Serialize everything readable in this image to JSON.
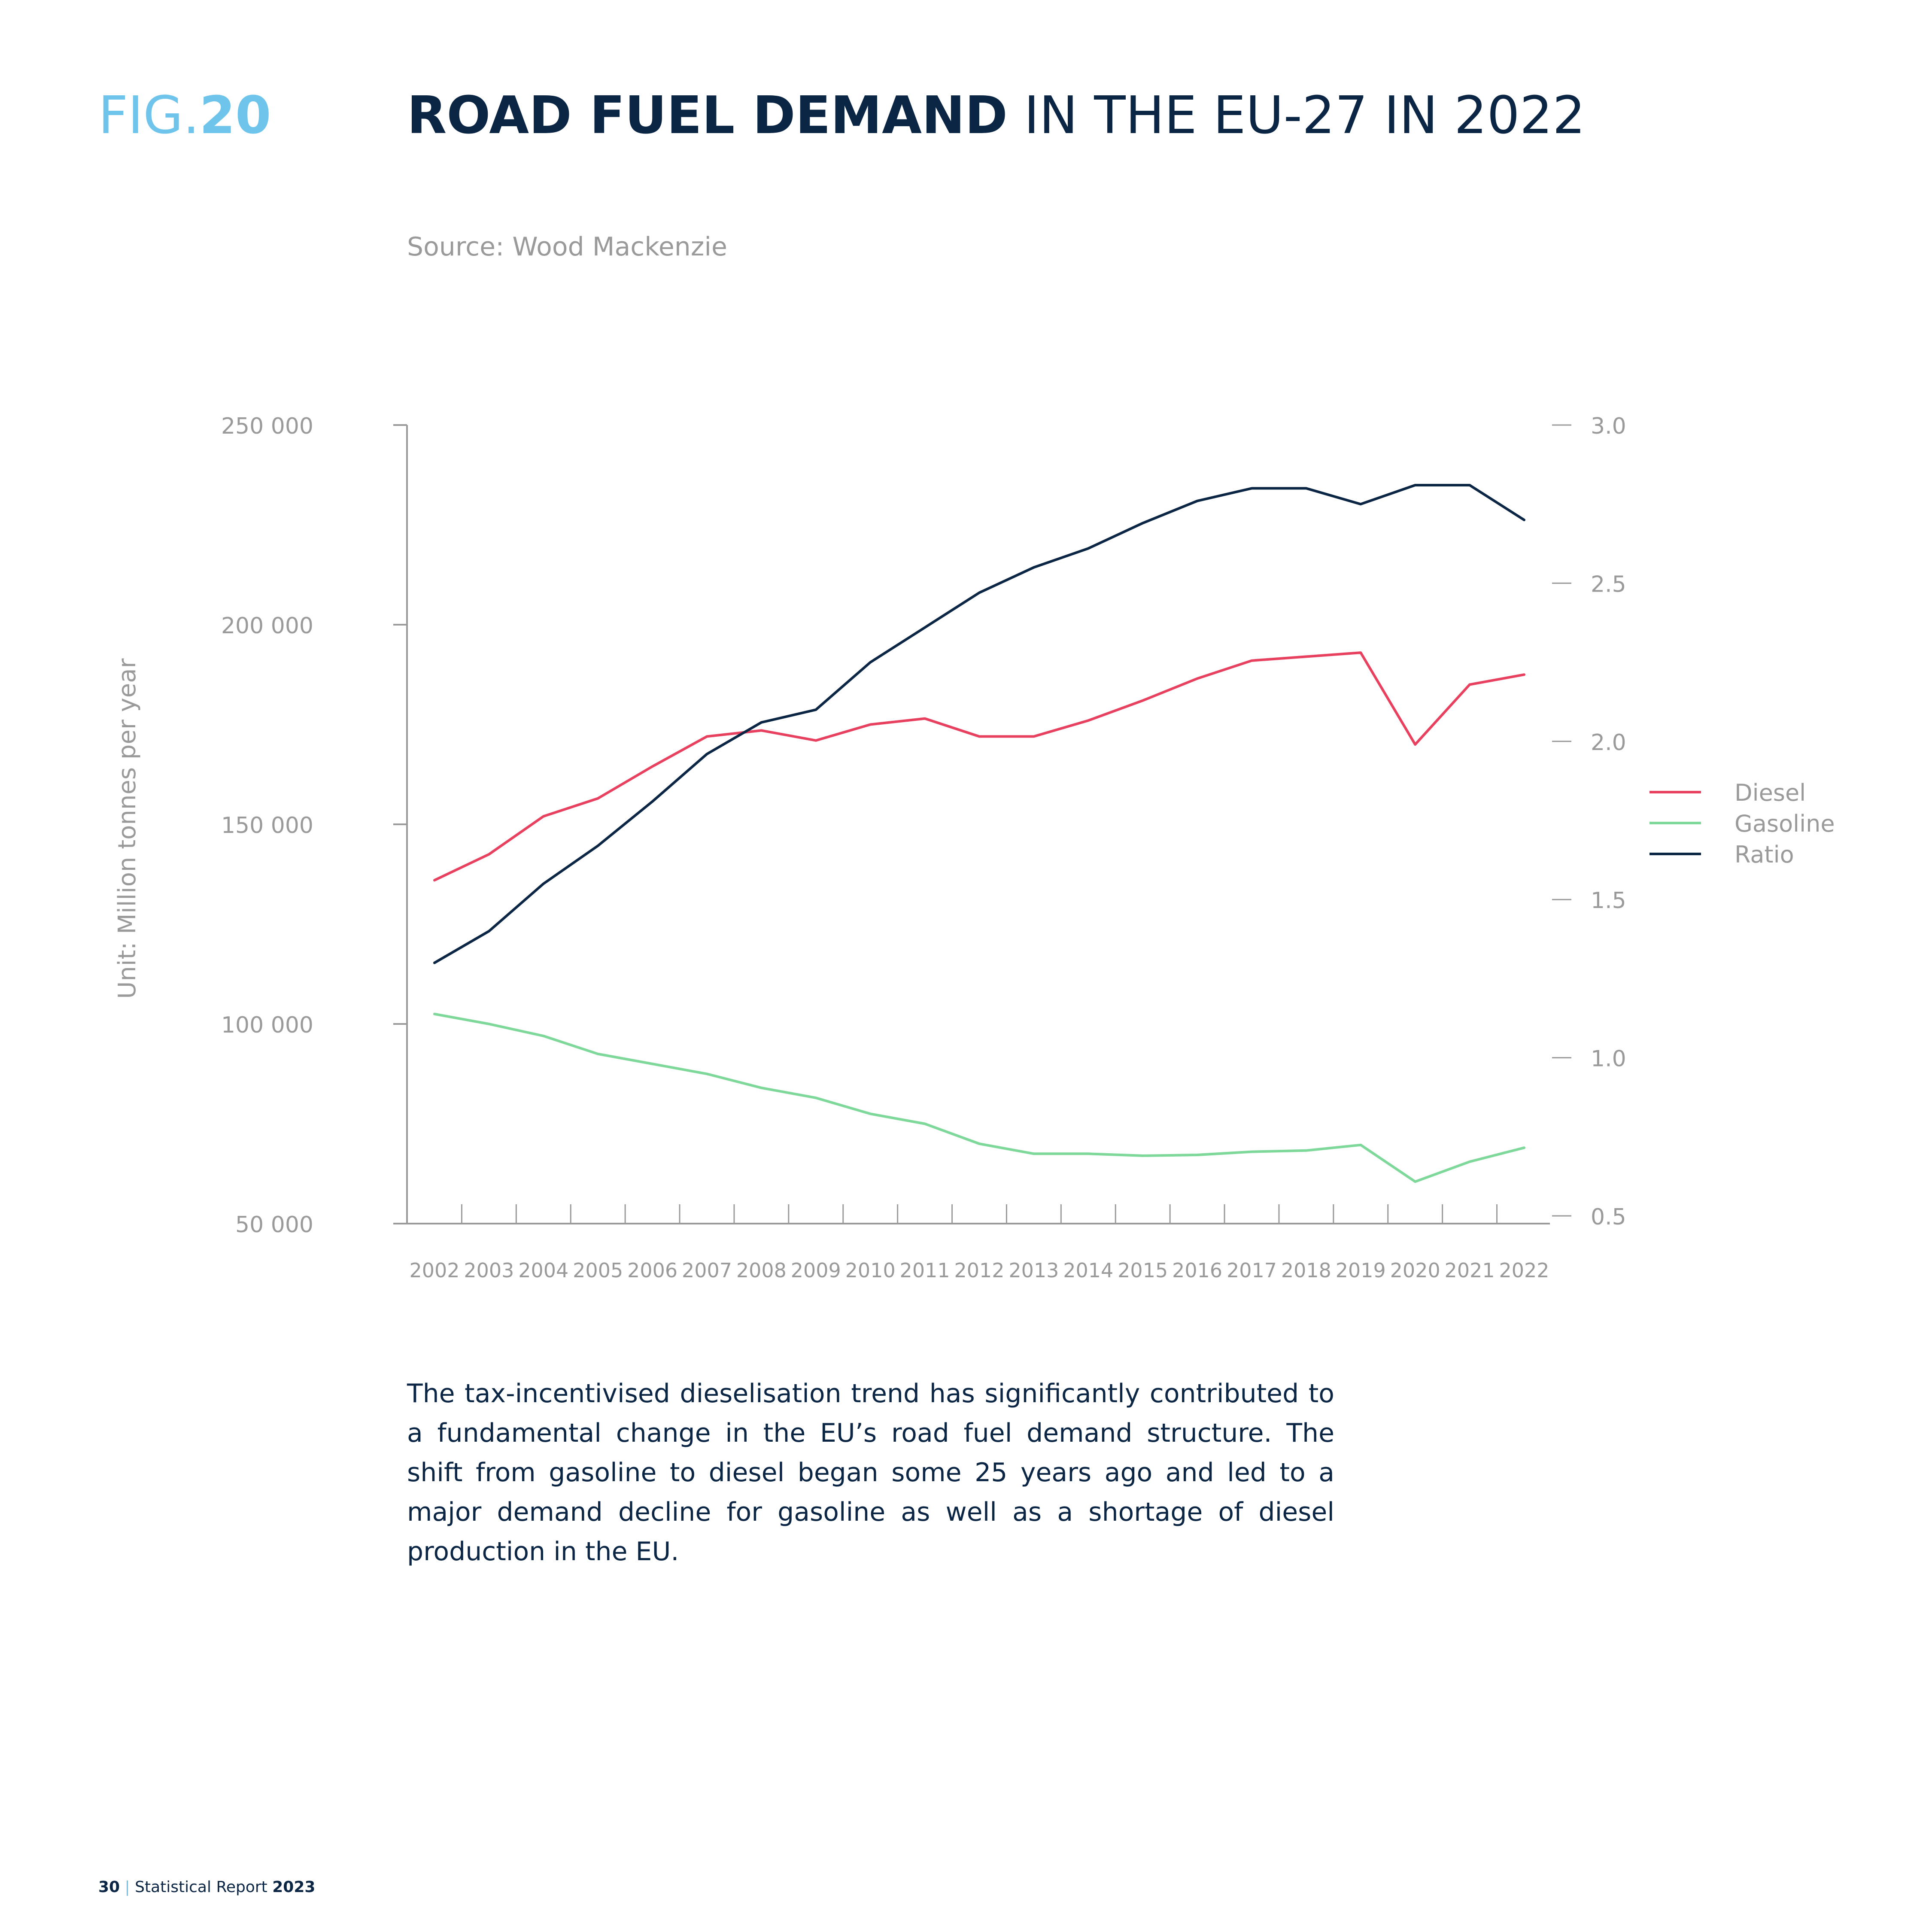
{
  "header": {
    "fig_prefix": "FIG.",
    "fig_number": "20",
    "title_bold": "ROAD FUEL DEMAND",
    "title_rest": " IN THE EU-27 IN 2022",
    "source": "Source: Wood Mackenzie"
  },
  "chart_data": {
    "type": "line",
    "ylabel": "Unit: Million tonnes per year",
    "x": [
      "2002",
      "2003",
      "2004",
      "2005",
      "2006",
      "2007",
      "2008",
      "2009",
      "2010",
      "2011",
      "2012",
      "2013",
      "2014",
      "2015",
      "2016",
      "2017",
      "2018",
      "2019",
      "2020",
      "2021",
      "2022"
    ],
    "y_left": {
      "ticks": [
        "250 000",
        "200 000",
        "150 000",
        "100 000",
        "50 000"
      ],
      "tick_values": [
        250000,
        200000,
        150000,
        100000,
        50000
      ],
      "range": [
        50000,
        250000
      ]
    },
    "y_right": {
      "ticks": [
        "3.0",
        "2.5",
        "2.0",
        "1.5",
        "1.0",
        "0.5"
      ],
      "tick_values": [
        3.0,
        2.5,
        2.0,
        1.5,
        1.0,
        0.5
      ],
      "range": [
        0.5,
        3.0
      ]
    },
    "series": [
      {
        "name": "Diesel",
        "axis": "left",
        "color": "#e8415f",
        "values": [
          136000,
          142500,
          152000,
          156500,
          164500,
          172000,
          173500,
          171000,
          175000,
          176500,
          172000,
          172000,
          176000,
          181000,
          186500,
          191000,
          192000,
          193000,
          170000,
          185000,
          187500
        ]
      },
      {
        "name": "Gasoline",
        "axis": "left",
        "color": "#7ed89a",
        "values": [
          102500,
          100000,
          97000,
          92500,
          90000,
          87500,
          84000,
          81500,
          77500,
          75000,
          70000,
          67500,
          67500,
          67000,
          67200,
          68000,
          68300,
          69700,
          60500,
          65500,
          69000
        ]
      },
      {
        "name": "Ratio",
        "axis": "right",
        "color": "#0b2545",
        "values": [
          1.3,
          1.4,
          1.55,
          1.67,
          1.81,
          1.96,
          2.06,
          2.1,
          2.25,
          2.36,
          2.47,
          2.55,
          2.61,
          2.69,
          2.76,
          2.8,
          2.8,
          2.75,
          2.81,
          2.81,
          2.7
        ]
      }
    ],
    "legend_position": "right",
    "grid": false
  },
  "body_text": "The tax-incentivised dieselisation trend has significantly contributed to a fundamental change in the EU’s road fuel demand structure. The shift from gasoline to diesel began some 25 years ago and led to a major demand decline for gasoline as well as a shortage of diesel production in the EU.",
  "footer": {
    "page": "30",
    "separator": " | ",
    "report": "Statistical Report ",
    "year": "2023"
  }
}
